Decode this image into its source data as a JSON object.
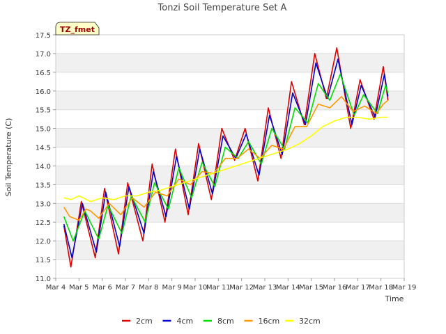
{
  "chart_data": {
    "type": "line",
    "title": "Tonzi Soil Temperature Set A",
    "xlabel": "Time",
    "ylabel": "Soil Temperature (C)",
    "annotation": "TZ_fmet",
    "xlim": [
      4,
      19
    ],
    "ylim": [
      11.0,
      17.5
    ],
    "x_ticks": [
      4,
      5,
      6,
      7,
      8,
      9,
      10,
      11,
      12,
      13,
      14,
      15,
      16,
      17,
      18,
      19
    ],
    "x_tick_labels": [
      "Mar 4",
      "Mar 5",
      "Mar 6",
      "Mar 7",
      "Mar 8",
      "Mar 9",
      "Mar 10",
      "Mar 11",
      "Mar 12",
      "Mar 13",
      "Mar 14",
      "Mar 15",
      "Mar 16",
      "Mar 17",
      "Mar 18",
      "Mar 19"
    ],
    "y_ticks": [
      11.0,
      11.5,
      12.0,
      12.5,
      13.0,
      13.5,
      14.0,
      14.5,
      15.0,
      15.5,
      16.0,
      16.5,
      17.0,
      17.5
    ],
    "y_tick_labels": [
      "11.0",
      "11.5",
      "12.0",
      "12.5",
      "13.0",
      "13.5",
      "14.0",
      "14.5",
      "15.0",
      "15.5",
      "16.0",
      "16.5",
      "17.0",
      "17.5"
    ],
    "legend_position": "bottom-center",
    "series": [
      {
        "name": "2cm",
        "color": "#dd0000",
        "points": [
          [
            4.35,
            12.4
          ],
          [
            4.65,
            11.3
          ],
          [
            5.1,
            13.05
          ],
          [
            5.7,
            11.55
          ],
          [
            6.1,
            13.4
          ],
          [
            6.7,
            11.65
          ],
          [
            7.1,
            13.55
          ],
          [
            7.75,
            12.0
          ],
          [
            8.15,
            14.05
          ],
          [
            8.7,
            12.5
          ],
          [
            9.15,
            14.45
          ],
          [
            9.7,
            12.7
          ],
          [
            10.15,
            14.6
          ],
          [
            10.7,
            13.1
          ],
          [
            11.15,
            15.0
          ],
          [
            11.7,
            14.15
          ],
          [
            12.15,
            15.0
          ],
          [
            12.7,
            13.6
          ],
          [
            13.15,
            15.55
          ],
          [
            13.7,
            14.2
          ],
          [
            14.15,
            16.25
          ],
          [
            14.7,
            15.1
          ],
          [
            15.15,
            17.0
          ],
          [
            15.65,
            15.8
          ],
          [
            16.1,
            17.15
          ],
          [
            16.7,
            15.0
          ],
          [
            17.1,
            16.3
          ],
          [
            17.7,
            15.25
          ],
          [
            18.1,
            16.65
          ],
          [
            18.3,
            15.75
          ]
        ]
      },
      {
        "name": "4cm",
        "color": "#0000cc",
        "points": [
          [
            4.35,
            12.45
          ],
          [
            4.7,
            11.55
          ],
          [
            5.15,
            13.0
          ],
          [
            5.75,
            11.7
          ],
          [
            6.15,
            13.3
          ],
          [
            6.75,
            11.85
          ],
          [
            7.15,
            13.45
          ],
          [
            7.8,
            12.2
          ],
          [
            8.2,
            13.85
          ],
          [
            8.75,
            12.65
          ],
          [
            9.2,
            14.25
          ],
          [
            9.75,
            12.85
          ],
          [
            10.2,
            14.45
          ],
          [
            10.75,
            13.25
          ],
          [
            11.2,
            14.8
          ],
          [
            11.75,
            14.2
          ],
          [
            12.2,
            14.85
          ],
          [
            12.75,
            13.75
          ],
          [
            13.2,
            15.35
          ],
          [
            13.75,
            14.3
          ],
          [
            14.2,
            15.95
          ],
          [
            14.75,
            15.1
          ],
          [
            15.2,
            16.75
          ],
          [
            15.7,
            15.8
          ],
          [
            16.15,
            16.85
          ],
          [
            16.75,
            15.1
          ],
          [
            17.15,
            16.15
          ],
          [
            17.75,
            15.3
          ],
          [
            18.15,
            16.45
          ],
          [
            18.3,
            15.85
          ]
        ]
      },
      {
        "name": "8cm",
        "color": "#00dd00",
        "points": [
          [
            4.35,
            12.65
          ],
          [
            4.75,
            12.0
          ],
          [
            5.25,
            12.8
          ],
          [
            5.85,
            12.05
          ],
          [
            6.25,
            12.95
          ],
          [
            6.85,
            12.2
          ],
          [
            7.25,
            13.2
          ],
          [
            7.85,
            12.5
          ],
          [
            8.25,
            13.55
          ],
          [
            8.85,
            12.85
          ],
          [
            9.3,
            13.95
          ],
          [
            9.85,
            13.15
          ],
          [
            10.3,
            14.1
          ],
          [
            10.85,
            13.45
          ],
          [
            11.3,
            14.5
          ],
          [
            11.85,
            14.2
          ],
          [
            12.3,
            14.65
          ],
          [
            12.85,
            14.05
          ],
          [
            13.3,
            15.0
          ],
          [
            13.85,
            14.45
          ],
          [
            14.3,
            15.55
          ],
          [
            14.85,
            15.15
          ],
          [
            15.3,
            16.2
          ],
          [
            15.8,
            15.75
          ],
          [
            16.25,
            16.45
          ],
          [
            16.85,
            15.35
          ],
          [
            17.25,
            15.9
          ],
          [
            17.85,
            15.4
          ],
          [
            18.2,
            16.15
          ],
          [
            18.3,
            15.95
          ]
        ]
      },
      {
        "name": "16cm",
        "color": "#ff9900",
        "points": [
          [
            4.35,
            12.9
          ],
          [
            4.6,
            12.65
          ],
          [
            5.0,
            12.55
          ],
          [
            5.3,
            12.85
          ],
          [
            5.5,
            12.8
          ],
          [
            5.85,
            12.6
          ],
          [
            6.3,
            13.0
          ],
          [
            6.8,
            12.7
          ],
          [
            7.3,
            13.15
          ],
          [
            7.8,
            12.9
          ],
          [
            8.3,
            13.3
          ],
          [
            8.8,
            13.2
          ],
          [
            9.3,
            13.65
          ],
          [
            9.8,
            13.5
          ],
          [
            10.3,
            13.85
          ],
          [
            10.8,
            13.8
          ],
          [
            11.3,
            14.2
          ],
          [
            11.8,
            14.2
          ],
          [
            12.3,
            14.45
          ],
          [
            12.8,
            14.2
          ],
          [
            13.3,
            14.55
          ],
          [
            13.8,
            14.45
          ],
          [
            14.3,
            15.05
          ],
          [
            14.8,
            15.05
          ],
          [
            15.3,
            15.65
          ],
          [
            15.8,
            15.55
          ],
          [
            16.3,
            15.85
          ],
          [
            16.8,
            15.45
          ],
          [
            17.3,
            15.6
          ],
          [
            17.8,
            15.4
          ],
          [
            18.1,
            15.65
          ],
          [
            18.3,
            15.75
          ]
        ]
      },
      {
        "name": "32cm",
        "color": "#ffff00",
        "points": [
          [
            4.35,
            13.15
          ],
          [
            4.65,
            13.1
          ],
          [
            5.0,
            13.2
          ],
          [
            5.5,
            13.05
          ],
          [
            6.0,
            13.15
          ],
          [
            6.5,
            13.1
          ],
          [
            7.0,
            13.2
          ],
          [
            7.5,
            13.2
          ],
          [
            8.0,
            13.3
          ],
          [
            8.5,
            13.35
          ],
          [
            9.0,
            13.45
          ],
          [
            9.5,
            13.55
          ],
          [
            10.0,
            13.65
          ],
          [
            10.5,
            13.75
          ],
          [
            11.0,
            13.85
          ],
          [
            11.5,
            13.95
          ],
          [
            12.0,
            14.05
          ],
          [
            12.5,
            14.15
          ],
          [
            13.0,
            14.25
          ],
          [
            13.5,
            14.35
          ],
          [
            14.0,
            14.45
          ],
          [
            14.5,
            14.6
          ],
          [
            15.0,
            14.8
          ],
          [
            15.5,
            15.05
          ],
          [
            16.0,
            15.2
          ],
          [
            16.5,
            15.3
          ],
          [
            17.0,
            15.3
          ],
          [
            17.5,
            15.25
          ],
          [
            18.0,
            15.3
          ],
          [
            18.3,
            15.3
          ]
        ]
      }
    ]
  }
}
